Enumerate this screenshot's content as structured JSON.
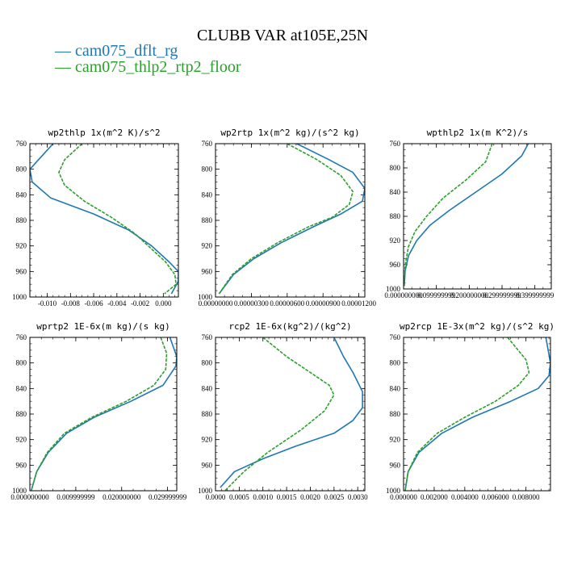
{
  "figure": {
    "title": "CLUBB VAR at105E,25N",
    "legend": [
      {
        "label": "cam075_dflt_rg",
        "color": "#1f77b4"
      },
      {
        "label": "cam075_thlp2_rtp2_floor",
        "color": "#2ca02c"
      }
    ]
  },
  "chart_data": [
    {
      "type": "line",
      "title": "wp2thlp  1x(m^2 K)/s^2",
      "xlim": [
        -0.0115,
        0.0013
      ],
      "ylim": [
        760,
        1000
      ],
      "y_inverted": true,
      "xticks": [
        -0.01,
        -0.008,
        -0.006,
        -0.004,
        -0.002,
        0.0
      ],
      "xtick_labels": [
        "-0.010",
        "-0.008",
        "-0.006",
        "-0.004",
        "-0.002",
        "0.000"
      ],
      "yticks": [
        760,
        800,
        840,
        880,
        920,
        960,
        1000
      ],
      "series": [
        {
          "name": "cam075_dflt_rg",
          "color": "#1f77b4",
          "x": [
            -0.0095,
            -0.0105,
            -0.0115,
            -0.0113,
            -0.0097,
            -0.006,
            -0.003,
            -0.001,
            0.0005,
            0.0013,
            0.0013,
            0.0007
          ],
          "y": [
            760,
            780,
            800,
            820,
            845,
            870,
            895,
            920,
            945,
            960,
            975,
            995
          ]
        },
        {
          "name": "cam075_thlp2_rtp2_floor",
          "color": "#2ca02c",
          "x": [
            -0.007,
            -0.0085,
            -0.009,
            -0.0085,
            -0.0068,
            -0.0045,
            -0.0025,
            -0.001,
            0.0002,
            0.001,
            0.0011,
            0.0001
          ],
          "y": [
            760,
            785,
            805,
            825,
            850,
            875,
            900,
            925,
            945,
            965,
            980,
            995
          ]
        }
      ]
    },
    {
      "type": "line",
      "title": "wp2rtp  1x(m^2 kg)/(s^2 kg)",
      "xlim": [
        0,
        1.25e-05
      ],
      "ylim": [
        760,
        1000
      ],
      "y_inverted": true,
      "xticks": [
        0,
        3e-06,
        6e-06,
        9e-06,
        1.2e-05
      ],
      "xtick_labels": [
        "0.00000000",
        "0.00000300",
        "0.00000600",
        "0.00000900",
        "0.00001200"
      ],
      "yticks": [
        760,
        800,
        840,
        880,
        920,
        960,
        1000
      ],
      "series": [
        {
          "name": "cam075_dflt_rg",
          "color": "#1f77b4",
          "x": [
            6.8e-06,
            9.5e-06,
            1.15e-05,
            1.25e-05,
            1.23e-05,
            1.05e-05,
            8.2e-06,
            5.5e-06,
            3.2e-06,
            1.5e-06,
            3e-07
          ],
          "y": [
            760,
            785,
            805,
            830,
            850,
            870,
            890,
            915,
            940,
            965,
            995
          ]
        },
        {
          "name": "cam075_thlp2_rtp2_floor",
          "color": "#2ca02c",
          "x": [
            6e-06,
            8.5e-06,
            1.05e-05,
            1.15e-05,
            1.12e-05,
            9.8e-06,
            7.8e-06,
            5.2e-06,
            3e-06,
            1.4e-06,
            3e-07
          ],
          "y": [
            760,
            785,
            810,
            835,
            855,
            875,
            890,
            915,
            940,
            965,
            995
          ]
        }
      ]
    },
    {
      "type": "line",
      "title": "wpthlp2  1x(m K^2)/s",
      "xlim": [
        0,
        0.45
      ],
      "ylim": [
        760,
        1000
      ],
      "y_inverted": true,
      "xticks": [
        0,
        0.1,
        0.2,
        0.3,
        0.4
      ],
      "xtick_labels": [
        "0.000000000",
        "0.099999999",
        "0.200000000",
        "0.299999999",
        "0.399999999"
      ],
      "yticks": [
        760,
        800,
        840,
        880,
        920,
        960,
        1000
      ],
      "series": [
        {
          "name": "cam075_dflt_rg",
          "color": "#1f77b4",
          "x": [
            0.38,
            0.36,
            0.3,
            0.22,
            0.14,
            0.08,
            0.04,
            0.015,
            0.005,
            0.002
          ],
          "y": [
            760,
            780,
            810,
            840,
            870,
            895,
            920,
            945,
            970,
            995
          ]
        },
        {
          "name": "cam075_thlp2_rtp2_floor",
          "color": "#2ca02c",
          "x": [
            0.27,
            0.25,
            0.19,
            0.12,
            0.07,
            0.035,
            0.015,
            0.005,
            0.002
          ],
          "y": [
            760,
            790,
            820,
            850,
            880,
            905,
            930,
            960,
            995
          ]
        }
      ]
    },
    {
      "type": "line",
      "title": "wprtp2  1E-6x(m kg)/(s kg)",
      "xlim": [
        0,
        0.032
      ],
      "ylim": [
        760,
        1000
      ],
      "y_inverted": true,
      "xticks": [
        0,
        0.01,
        0.02,
        0.03
      ],
      "xtick_labels": [
        "0.000000000",
        "0.009999999",
        "0.020000000",
        "0.029999999"
      ],
      "yticks": [
        760,
        800,
        840,
        880,
        920,
        960,
        1000
      ],
      "series": [
        {
          "name": "cam075_dflt_rg",
          "color": "#1f77b4",
          "x": [
            0.0305,
            0.032,
            0.0318,
            0.029,
            0.022,
            0.014,
            0.008,
            0.004,
            0.0015,
            0.0003
          ],
          "y": [
            760,
            790,
            805,
            835,
            860,
            885,
            910,
            940,
            970,
            1000
          ]
        },
        {
          "name": "cam075_thlp2_rtp2_floor",
          "color": "#2ca02c",
          "x": [
            0.0285,
            0.0298,
            0.0296,
            0.027,
            0.021,
            0.0135,
            0.0075,
            0.0038,
            0.0015,
            0.0003
          ],
          "y": [
            760,
            785,
            810,
            835,
            860,
            885,
            910,
            940,
            970,
            1000
          ]
        }
      ]
    },
    {
      "type": "line",
      "title": "rcp2  1E-6x(kg^2)/(kg^2)",
      "xlim": [
        0,
        0.00315
      ],
      "ylim": [
        760,
        1000
      ],
      "y_inverted": true,
      "xticks": [
        0,
        0.0005,
        0.001,
        0.0015,
        0.002,
        0.0025,
        0.003
      ],
      "xtick_labels": [
        "0.0000",
        "0.0005",
        "0.0010",
        "0.0015",
        "0.0020",
        "0.0025",
        "0.0030"
      ],
      "yticks": [
        760,
        800,
        840,
        880,
        920,
        960,
        1000
      ],
      "series": [
        {
          "name": "cam075_dflt_rg",
          "color": "#1f77b4",
          "x": [
            0.0025,
            0.0027,
            0.0029,
            0.0031,
            0.0031,
            0.0029,
            0.0025,
            0.0017,
            0.001,
            0.0004,
            0.0001
          ],
          "y": [
            760,
            790,
            815,
            845,
            870,
            890,
            910,
            930,
            950,
            970,
            995
          ]
        },
        {
          "name": "cam075_thlp2_rtp2_floor",
          "color": "#2ca02c",
          "x": [
            0.001,
            0.0015,
            0.002,
            0.0024,
            0.0025,
            0.0023,
            0.0018,
            0.0011,
            0.0006,
            0.0002
          ],
          "y": [
            760,
            790,
            815,
            835,
            850,
            875,
            905,
            940,
            970,
            1000
          ]
        }
      ]
    },
    {
      "type": "line",
      "title": "wp2rcp  1E-3x(m^2 kg)/(s^2 kg)",
      "xlim": [
        0,
        0.0096
      ],
      "ylim": [
        760,
        1000
      ],
      "y_inverted": true,
      "xticks": [
        0,
        0.002,
        0.004,
        0.006,
        0.008
      ],
      "xtick_labels": [
        "0.000000",
        "0.002000",
        "0.004000",
        "0.006000",
        "0.008000"
      ],
      "yticks": [
        760,
        800,
        840,
        880,
        920,
        960,
        1000
      ],
      "series": [
        {
          "name": "cam075_dflt_rg",
          "color": "#1f77b4",
          "x": [
            0.0093,
            0.0096,
            0.0095,
            0.0088,
            0.007,
            0.0045,
            0.0025,
            0.001,
            0.0003,
            0.0001
          ],
          "y": [
            760,
            800,
            820,
            840,
            860,
            885,
            910,
            940,
            970,
            1000
          ]
        },
        {
          "name": "cam075_thlp2_rtp2_floor",
          "color": "#2ca02c",
          "x": [
            0.0068,
            0.008,
            0.0082,
            0.0075,
            0.006,
            0.004,
            0.0022,
            0.0009,
            0.0003,
            0.0001
          ],
          "y": [
            760,
            795,
            815,
            835,
            860,
            885,
            910,
            940,
            970,
            1000
          ]
        }
      ]
    }
  ]
}
